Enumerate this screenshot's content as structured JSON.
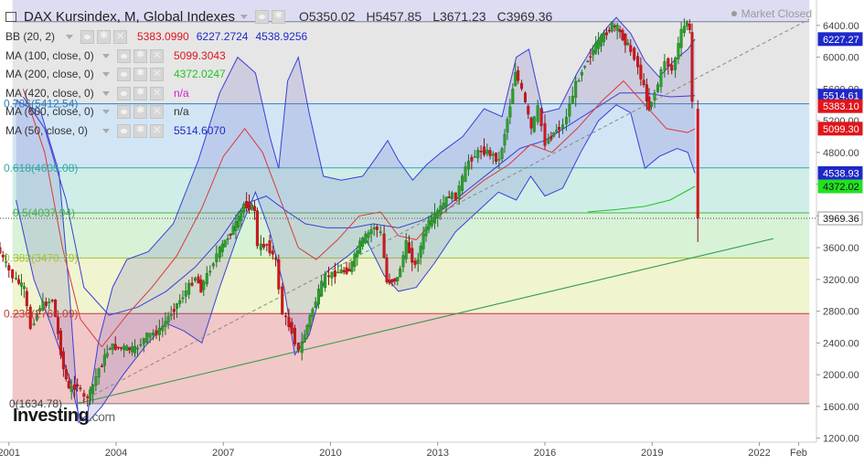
{
  "title": "DAX Kursindex, M, Global Indexes",
  "ohlc": {
    "o": "5350.02",
    "h": "5457.85",
    "l": "3671.23",
    "c": "3969.36"
  },
  "status": "Market Closed",
  "logo": {
    "main": "Investing",
    "suffix": ".com"
  },
  "indicators": [
    {
      "label": "BB (20, 2)",
      "values": [
        {
          "text": "5383.0990",
          "color": "#e0151b"
        },
        {
          "text": "6227.2724",
          "color": "#1f28c8"
        },
        {
          "text": "4538.9256",
          "color": "#1f28c8"
        }
      ]
    },
    {
      "label": "MA (100, close, 0)",
      "values": [
        {
          "text": "5099.3043",
          "color": "#e0151b"
        }
      ]
    },
    {
      "label": "MA (200, close, 0)",
      "values": [
        {
          "text": "4372.0247",
          "color": "#22c422"
        }
      ]
    },
    {
      "label": "MA (420, close, 0)",
      "values": [
        {
          "text": "n/a",
          "color": "#d01fd0"
        }
      ]
    },
    {
      "label": "MA (600, close, 0)",
      "values": [
        {
          "text": "n/a",
          "color": "#333333"
        }
      ]
    },
    {
      "label": "MA (50, close, 0)",
      "values": [
        {
          "text": "5514.6070",
          "color": "#1f28c8"
        }
      ]
    }
  ],
  "chart_data": {
    "type": "candlestick",
    "title": "DAX Kursindex, M, Global Indexes",
    "x_range": [
      2000.75,
      2023.6
    ],
    "y_range": [
      1150,
      6720
    ],
    "x_ticks": [
      {
        "label": "2001",
        "x": 2001.0
      },
      {
        "label": "2004",
        "x": 2004.0
      },
      {
        "label": "2007",
        "x": 2007.0
      },
      {
        "label": "2010",
        "x": 2010.0
      },
      {
        "label": "2013",
        "x": 2013.0
      },
      {
        "label": "2016",
        "x": 2016.0
      },
      {
        "label": "2019",
        "x": 2019.0
      },
      {
        "label": "2022",
        "x": 2022.0
      },
      {
        "label": "Feb",
        "x": 2023.1
      }
    ],
    "y_ticks": [
      "6800.00",
      "6400.00",
      "6000.00",
      "5600.00",
      "5200.00",
      "4800.00",
      "4400.00",
      "4000.00",
      "3600.00",
      "3200.00",
      "2800.00",
      "2400.00",
      "2000.00",
      "1600.00",
      "1200.00"
    ],
    "price_labels": [
      {
        "text": "6227.27",
        "value": 6227.27,
        "bg": "#1f28c8",
        "fg": "#ffffff"
      },
      {
        "text": "5514.61",
        "value": 5514.61,
        "bg": "#1f28c8",
        "fg": "#ffffff"
      },
      {
        "text": "5383.10",
        "value": 5383.1,
        "bg": "#e0151b",
        "fg": "#ffffff"
      },
      {
        "text": "5099.30",
        "value": 5099.3,
        "bg": "#e0151b",
        "fg": "#ffffff"
      },
      {
        "text": "4538.93",
        "value": 4538.93,
        "bg": "#1f28c8",
        "fg": "#ffffff"
      },
      {
        "text": "4372.02",
        "value": 4372.02,
        "bg": "#22e022",
        "fg": "#111111"
      },
      {
        "text": "3969.36",
        "value": 3969.36,
        "bg": "#ffffff",
        "fg": "#111111"
      }
    ],
    "fibonacci": [
      {
        "ratio": "0",
        "value": 1634.78,
        "label": "0(1634.78)"
      },
      {
        "ratio": "0.236",
        "value": 2769.09,
        "label": "0.236(2769.09)"
      },
      {
        "ratio": "0.382",
        "value": 3470.79,
        "label": "0.382(3470.79)"
      },
      {
        "ratio": "0.5",
        "value": 4037.94,
        "label": "0.5(4037.94)"
      },
      {
        "ratio": "0.618",
        "value": 4605.08,
        "label": "0.618(4605.08)"
      },
      {
        "ratio": "0.786",
        "value": 5412.54,
        "label": "0.786(5412.54)"
      },
      {
        "ratio": "1",
        "value": 6447.03,
        "label": ""
      }
    ],
    "fib_colors": [
      "#f2c7c7",
      "#f0f4cf",
      "#d8f2d8",
      "#cfeee8",
      "#d2e5f5",
      "#e6e6e6"
    ],
    "fib_line_colors": [
      "#777777",
      "#c23b3b",
      "#a7c233",
      "#4cb04c",
      "#33aaa5",
      "#2e7fbe",
      "#7a7a9a"
    ],
    "monthly_anchors": [
      [
        2000.75,
        6800,
        6300
      ],
      [
        2001.0,
        6300,
        6250
      ],
      [
        2001.2,
        5950,
        5900
      ],
      [
        2001.5,
        5600,
        5200
      ],
      [
        2001.7,
        4500,
        4650
      ],
      [
        2001.95,
        5100,
        5050
      ],
      [
        2002.3,
        5300,
        4950
      ],
      [
        2002.45,
        4300,
        4000
      ],
      [
        2002.6,
        3300,
        3200
      ],
      [
        2002.75,
        2700,
        2850
      ],
      [
        2003.0,
        2850,
        2650
      ],
      [
        2003.2,
        2450,
        2300
      ],
      [
        2003.35,
        2600,
        2850
      ],
      [
        2003.6,
        3300,
        3350
      ],
      [
        2003.9,
        3950,
        3700
      ],
      [
        2004.3,
        3900,
        3800
      ],
      [
        2004.6,
        3850,
        3850
      ],
      [
        2004.95,
        4250,
        4200
      ],
      [
        2005.3,
        4400,
        4400
      ],
      [
        2005.7,
        5050,
        5000
      ],
      [
        2005.95,
        5400,
        5500
      ],
      [
        2006.3,
        5950,
        5650
      ],
      [
        2006.45,
        5600,
        5950
      ],
      [
        2006.9,
        6600,
        6900
      ],
      [
        2007.2,
        7100,
        7400
      ],
      [
        2007.5,
        7600,
        7850
      ],
      [
        2007.65,
        8050,
        7550
      ],
      [
        2007.95,
        7900,
        8050
      ],
      [
        2008.05,
        6800,
        6700
      ],
      [
        2008.3,
        6900,
        6400
      ],
      [
        2008.55,
        6400,
        6000
      ],
      [
        2008.75,
        4900,
        4800
      ],
      [
        2009.0,
        4400,
        4300
      ],
      [
        2009.2,
        3800,
        4000
      ],
      [
        2009.5,
        4800,
        5200
      ],
      [
        2009.75,
        5500,
        5600
      ],
      [
        2009.95,
        5950,
        5550
      ],
      [
        2010.3,
        6100,
        6000
      ],
      [
        2010.6,
        6150,
        6200
      ],
      [
        2010.9,
        6900,
        7050
      ],
      [
        2011.3,
        7400,
        7300
      ],
      [
        2011.5,
        7200,
        7000
      ],
      [
        2011.65,
        5800,
        5650
      ],
      [
        2011.95,
        5900,
        6100
      ],
      [
        2012.2,
        6900,
        6550
      ],
      [
        2012.45,
        6250,
        6750
      ],
      [
        2012.75,
        7400,
        7600
      ],
      [
        2013.0,
        7700,
        7900
      ],
      [
        2013.4,
        8300,
        8000
      ],
      [
        2013.6,
        8250,
        8400
      ],
      [
        2013.95,
        9300,
        9500
      ],
      [
        2014.3,
        9600,
        9900
      ],
      [
        2014.55,
        9500,
        9300
      ],
      [
        2014.8,
        9300,
        9900
      ],
      [
        2015.1,
        10900,
        11500
      ],
      [
        2015.25,
        11900,
        11450
      ],
      [
        2015.45,
        11300,
        11100
      ],
      [
        2015.7,
        10200,
        9700
      ],
      [
        2015.9,
        10800,
        11000
      ],
      [
        2016.1,
        9800,
        9500
      ],
      [
        2016.4,
        10200,
        10100
      ],
      [
        2016.6,
        10300,
        10700
      ],
      [
        2016.95,
        11500,
        11500
      ],
      [
        2017.2,
        12100,
        12300
      ],
      [
        2017.5,
        12600,
        12100
      ],
      [
        2017.8,
        13000,
        13200
      ],
      [
        2017.95,
        13200,
        12900
      ],
      [
        2018.1,
        13100,
        12300
      ],
      [
        2018.4,
        12600,
        12700
      ],
      [
        2018.6,
        12300,
        12400
      ],
      [
        2018.85,
        11400,
        11000
      ],
      [
        2018.98,
        10800,
        10600
      ],
      [
        2019.25,
        11500,
        12100
      ],
      [
        2019.45,
        12200,
        12400
      ],
      [
        2019.65,
        11900,
        12400
      ],
      [
        2019.9,
        13000,
        13200
      ],
      [
        2020.05,
        13300,
        12900
      ],
      [
        2020.12,
        13000,
        11900
      ],
      [
        2020.2,
        11000,
        9935
      ]
    ],
    "price_scale_note": "monthly anchors are normalized so the last close equals 3969.36 on the displayed axis",
    "bb_upper": [
      [
        2001.2,
        5450
      ],
      [
        2001.9,
        5300
      ],
      [
        2002.4,
        4550
      ],
      [
        2002.7,
        3000
      ],
      [
        2002.95,
        1400
      ],
      [
        2003.2,
        1500
      ],
      [
        2003.5,
        2400
      ],
      [
        2003.9,
        3100
      ],
      [
        2004.3,
        3450
      ],
      [
        2004.9,
        3550
      ],
      [
        2005.6,
        3900
      ],
      [
        2006.3,
        4700
      ],
      [
        2006.9,
        5550
      ],
      [
        2007.4,
        6000
      ],
      [
        2007.9,
        5800
      ],
      [
        2008.3,
        5000
      ],
      [
        2008.55,
        4600
      ],
      [
        2008.8,
        5700
      ],
      [
        2009.1,
        6000
      ],
      [
        2009.4,
        5300
      ],
      [
        2009.8,
        4500
      ],
      [
        2010.3,
        4450
      ],
      [
        2010.9,
        4500
      ],
      [
        2011.3,
        4750
      ],
      [
        2011.6,
        4950
      ],
      [
        2011.9,
        4700
      ],
      [
        2012.3,
        4450
      ],
      [
        2012.7,
        4650
      ],
      [
        2013.1,
        4800
      ],
      [
        2013.7,
        5000
      ],
      [
        2014.3,
        5350
      ],
      [
        2014.8,
        5250
      ],
      [
        2015.2,
        6000
      ],
      [
        2015.55,
        6100
      ],
      [
        2015.95,
        5300
      ],
      [
        2016.4,
        5350
      ],
      [
        2016.9,
        5800
      ],
      [
        2017.3,
        6100
      ],
      [
        2017.75,
        6380
      ],
      [
        2018.0,
        6500
      ],
      [
        2018.4,
        6300
      ],
      [
        2018.8,
        5950
      ],
      [
        2019.2,
        5750
      ],
      [
        2019.6,
        5950
      ],
      [
        2020.0,
        6100
      ],
      [
        2020.2,
        6227
      ]
    ],
    "bb_lower": [
      [
        2001.2,
        4200
      ],
      [
        2001.7,
        3200
      ],
      [
        2002.2,
        2600
      ],
      [
        2002.7,
        1950
      ],
      [
        2002.95,
        1500
      ],
      [
        2003.2,
        1400
      ],
      [
        2003.6,
        1600
      ],
      [
        2004.2,
        2000
      ],
      [
        2004.8,
        2350
      ],
      [
        2005.4,
        2650
      ],
      [
        2005.9,
        2550
      ],
      [
        2006.4,
        2400
      ],
      [
        2006.9,
        3100
      ],
      [
        2007.4,
        3750
      ],
      [
        2007.9,
        4300
      ],
      [
        2008.3,
        3800
      ],
      [
        2008.7,
        3100
      ],
      [
        2009.0,
        2250
      ],
      [
        2009.4,
        2500
      ],
      [
        2009.9,
        3300
      ],
      [
        2010.5,
        3500
      ],
      [
        2011.0,
        3700
      ],
      [
        2011.5,
        3250
      ],
      [
        2011.9,
        3050
      ],
      [
        2012.4,
        3100
      ],
      [
        2012.9,
        3400
      ],
      [
        2013.5,
        3800
      ],
      [
        2014.1,
        4050
      ],
      [
        2014.7,
        4300
      ],
      [
        2015.2,
        4200
      ],
      [
        2015.6,
        4500
      ],
      [
        2016.0,
        4250
      ],
      [
        2016.5,
        4350
      ],
      [
        2017.0,
        4800
      ],
      [
        2017.5,
        5200
      ],
      [
        2018.0,
        5400
      ],
      [
        2018.4,
        5300
      ],
      [
        2018.8,
        4600
      ],
      [
        2019.2,
        4750
      ],
      [
        2019.7,
        4850
      ],
      [
        2020.0,
        4800
      ],
      [
        2020.2,
        4539
      ]
    ],
    "ma50": [
      [
        2001.4,
        5500
      ],
      [
        2002.0,
        5100
      ],
      [
        2002.6,
        4200
      ],
      [
        2003.1,
        3100
      ],
      [
        2003.8,
        2750
      ],
      [
        2004.6,
        2850
      ],
      [
        2005.4,
        3050
      ],
      [
        2006.2,
        3350
      ],
      [
        2006.9,
        3700
      ],
      [
        2007.6,
        4150
      ],
      [
        2008.2,
        4250
      ],
      [
        2008.8,
        4050
      ],
      [
        2009.3,
        3900
      ],
      [
        2009.9,
        3850
      ],
      [
        2010.6,
        3850
      ],
      [
        2011.2,
        3900
      ],
      [
        2011.9,
        3850
      ],
      [
        2012.6,
        3950
      ],
      [
        2013.2,
        4100
      ],
      [
        2013.9,
        4350
      ],
      [
        2014.6,
        4600
      ],
      [
        2015.3,
        4850
      ],
      [
        2016.0,
        4950
      ],
      [
        2016.7,
        5150
      ],
      [
        2017.4,
        5350
      ],
      [
        2018.1,
        5550
      ],
      [
        2018.8,
        5550
      ],
      [
        2019.5,
        5500
      ],
      [
        2020.2,
        5515
      ]
    ],
    "ma100": [
      [
        2001.4,
        5600
      ],
      [
        2002.0,
        4800
      ],
      [
        2002.5,
        3600
      ],
      [
        2003.0,
        2700
      ],
      [
        2003.6,
        2350
      ],
      [
        2004.3,
        2750
      ],
      [
        2005.0,
        3100
      ],
      [
        2005.7,
        3500
      ],
      [
        2006.4,
        4100
      ],
      [
        2007.0,
        4750
      ],
      [
        2007.6,
        5100
      ],
      [
        2008.1,
        4800
      ],
      [
        2008.6,
        4200
      ],
      [
        2009.1,
        3600
      ],
      [
        2009.6,
        3450
      ],
      [
        2010.2,
        3700
      ],
      [
        2010.8,
        4000
      ],
      [
        2011.4,
        4050
      ],
      [
        2011.9,
        3750
      ],
      [
        2012.4,
        3700
      ],
      [
        2012.9,
        3950
      ],
      [
        2013.6,
        4200
      ],
      [
        2014.3,
        4450
      ],
      [
        2015.0,
        4650
      ],
      [
        2015.6,
        4900
      ],
      [
        2016.2,
        4800
      ],
      [
        2016.9,
        5100
      ],
      [
        2017.6,
        5450
      ],
      [
        2018.2,
        5700
      ],
      [
        2018.8,
        5400
      ],
      [
        2019.4,
        5100
      ],
      [
        2020.0,
        5050
      ],
      [
        2020.2,
        5099
      ]
    ],
    "ma200": [
      [
        2017.2,
        4050
      ],
      [
        2018.0,
        4080
      ],
      [
        2018.8,
        4120
      ],
      [
        2019.5,
        4200
      ],
      [
        2020.2,
        4372
      ]
    ],
    "dashed_line": [
      [
        2002.9,
        1634.78
      ],
      [
        2023.4,
        6480
      ]
    ],
    "trend_line": [
      [
        2002.9,
        1634.78
      ],
      [
        2022.4,
        3715
      ]
    ]
  }
}
